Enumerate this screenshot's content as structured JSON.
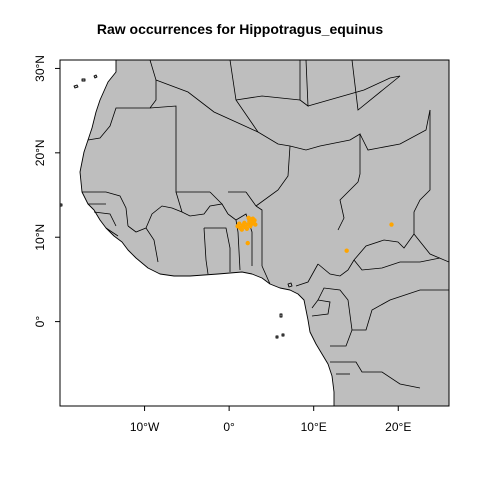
{
  "title": "Raw occurrences for Hippotragus_equinus",
  "chart_data": {
    "type": "scatter",
    "title": "Raw occurrences for Hippotragus_equinus",
    "xlabel": "",
    "ylabel": "",
    "xlim": [
      -20,
      26
    ],
    "ylim": [
      -10,
      31
    ],
    "x_ticks": [
      {
        "value": -10,
        "label": "10°W"
      },
      {
        "value": 0,
        "label": "0°"
      },
      {
        "value": 10,
        "label": "10°E"
      },
      {
        "value": 20,
        "label": "20°E"
      }
    ],
    "y_ticks": [
      {
        "value": 30,
        "label": "30°N"
      },
      {
        "value": 20,
        "label": "20°N"
      },
      {
        "value": 10,
        "label": "10°N"
      },
      {
        "value": 0,
        "label": "0°"
      }
    ],
    "grid": false,
    "land_color": "#bebebe",
    "point_color": "#ffa500",
    "points": [
      {
        "lon": 1.0,
        "lat": 11.3
      },
      {
        "lon": 1.3,
        "lat": 11.1
      },
      {
        "lon": 1.6,
        "lat": 11.4
      },
      {
        "lon": 1.9,
        "lat": 11.2
      },
      {
        "lon": 2.2,
        "lat": 11.5
      },
      {
        "lon": 2.4,
        "lat": 11.9
      },
      {
        "lon": 2.6,
        "lat": 12.1
      },
      {
        "lon": 2.8,
        "lat": 12.2
      },
      {
        "lon": 3.0,
        "lat": 12.0
      },
      {
        "lon": 2.7,
        "lat": 11.6
      },
      {
        "lon": 2.5,
        "lat": 11.3
      },
      {
        "lon": 2.1,
        "lat": 11.0
      },
      {
        "lon": 1.5,
        "lat": 10.9
      },
      {
        "lon": 1.8,
        "lat": 11.7
      },
      {
        "lon": 2.9,
        "lat": 11.8
      },
      {
        "lon": 3.1,
        "lat": 11.5
      },
      {
        "lon": 2.3,
        "lat": 12.3
      },
      {
        "lon": 1.2,
        "lat": 11.6
      },
      {
        "lon": 2.2,
        "lat": 9.3
      },
      {
        "lon": 13.9,
        "lat": 8.4
      },
      {
        "lon": 19.2,
        "lat": 11.5
      }
    ]
  }
}
